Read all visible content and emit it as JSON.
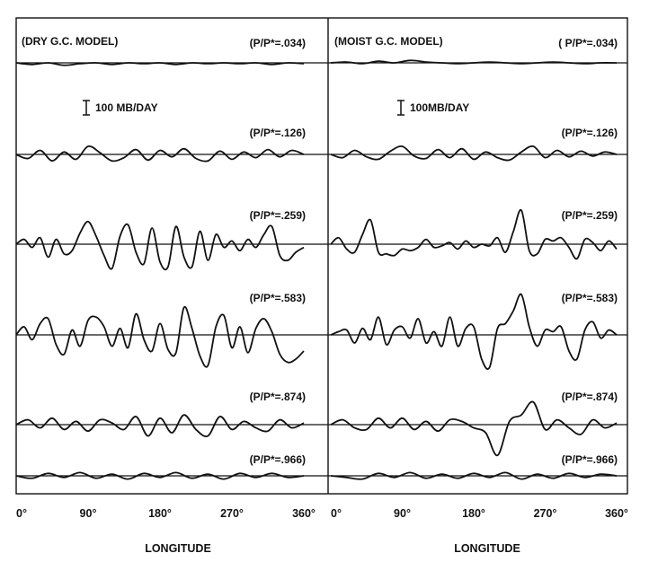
{
  "chart_data": [
    {
      "type": "line",
      "title": "(DRY G.C. MODEL)",
      "scale_label": "100 MB/DAY",
      "xlabel": "LONGITUDE",
      "x_ticks": [
        "0°",
        "90°",
        "180°",
        "270°",
        "360°"
      ],
      "xlim": [
        0,
        360
      ],
      "series": [
        {
          "name": "(P/P*=.034)",
          "x": [
            0,
            20,
            40,
            60,
            80,
            100,
            120,
            140,
            160,
            180,
            200,
            220,
            240,
            260,
            280,
            300,
            320,
            340,
            360
          ],
          "y": [
            0,
            -2,
            0,
            -3,
            -1,
            0,
            -2,
            0,
            -1,
            0,
            -2,
            0,
            -1,
            0,
            -1,
            0,
            -2,
            0,
            -1
          ]
        },
        {
          "name": "(P/P*=.126)",
          "x": [
            0,
            15,
            30,
            45,
            60,
            75,
            90,
            105,
            120,
            135,
            150,
            165,
            180,
            195,
            210,
            225,
            240,
            255,
            270,
            285,
            300,
            315,
            330,
            345,
            360
          ],
          "y": [
            0,
            -5,
            5,
            -8,
            3,
            -6,
            10,
            2,
            -8,
            -4,
            6,
            -7,
            5,
            -3,
            7,
            -5,
            -8,
            4,
            -6,
            3,
            -4,
            6,
            -3,
            5,
            0
          ]
        },
        {
          "name": "(P/P*=.259)",
          "x": [
            0,
            10,
            20,
            30,
            40,
            50,
            60,
            70,
            80,
            90,
            100,
            110,
            120,
            130,
            140,
            150,
            160,
            170,
            180,
            190,
            200,
            210,
            220,
            230,
            240,
            250,
            260,
            270,
            280,
            290,
            300,
            310,
            320,
            330,
            340,
            350,
            360
          ],
          "y": [
            0,
            6,
            -4,
            8,
            -16,
            6,
            -12,
            -8,
            14,
            28,
            10,
            -14,
            -30,
            10,
            24,
            -10,
            -24,
            20,
            -22,
            -28,
            22,
            -16,
            -28,
            16,
            -20,
            12,
            -4,
            4,
            -8,
            6,
            -4,
            12,
            22,
            -14,
            -20,
            -10,
            -4
          ]
        },
        {
          "name": "(P/P*=.583)",
          "x": [
            0,
            10,
            20,
            30,
            40,
            50,
            60,
            70,
            80,
            90,
            100,
            110,
            120,
            130,
            140,
            150,
            160,
            170,
            180,
            190,
            200,
            210,
            220,
            230,
            240,
            250,
            260,
            270,
            280,
            290,
            300,
            310,
            320,
            330,
            340,
            350,
            360
          ],
          "y": [
            0,
            10,
            -6,
            14,
            20,
            -12,
            -24,
            6,
            -14,
            18,
            22,
            10,
            -14,
            8,
            -16,
            26,
            -6,
            -20,
            14,
            -18,
            -22,
            34,
            8,
            -26,
            -38,
            10,
            24,
            -16,
            10,
            -22,
            8,
            20,
            4,
            -24,
            -34,
            -30,
            -20
          ]
        },
        {
          "name": "(P/P*=.874)",
          "x": [
            0,
            15,
            30,
            45,
            60,
            75,
            90,
            105,
            120,
            135,
            150,
            165,
            180,
            195,
            210,
            225,
            240,
            255,
            270,
            285,
            300,
            315,
            330,
            345,
            360
          ],
          "y": [
            0,
            6,
            -4,
            8,
            -6,
            4,
            -8,
            6,
            2,
            -6,
            10,
            -14,
            8,
            -10,
            12,
            -6,
            -14,
            10,
            -6,
            4,
            -4,
            -8,
            6,
            -4,
            2
          ]
        },
        {
          "name": "(P/P*=.966)",
          "x": [
            0,
            20,
            40,
            60,
            80,
            100,
            120,
            140,
            160,
            180,
            200,
            220,
            240,
            260,
            280,
            300,
            320,
            340,
            360
          ],
          "y": [
            0,
            -3,
            3,
            -2,
            4,
            -3,
            2,
            -4,
            3,
            -2,
            4,
            -3,
            2,
            -4,
            3,
            -2,
            3,
            -2,
            0
          ]
        }
      ]
    },
    {
      "type": "line",
      "title": "(MOIST G.C. MODEL)",
      "scale_label": "100MB/DAY",
      "xlabel": "LONGITUDE",
      "x_ticks": [
        "0°",
        "90°",
        "180°",
        "270°",
        "360°"
      ],
      "xlim": [
        0,
        360
      ],
      "series": [
        {
          "name": "( P/P*=.034)",
          "x": [
            0,
            20,
            40,
            60,
            80,
            100,
            120,
            140,
            160,
            180,
            200,
            220,
            240,
            260,
            280,
            300,
            320,
            340,
            360
          ],
          "y": [
            0,
            1,
            -1,
            2,
            0,
            3,
            1,
            0,
            -1,
            0,
            1,
            0,
            -1,
            0,
            1,
            0,
            -1,
            0,
            0
          ]
        },
        {
          "name": "(P/P*=.126)",
          "x": [
            0,
            15,
            30,
            45,
            60,
            75,
            90,
            105,
            120,
            135,
            150,
            165,
            180,
            195,
            210,
            225,
            240,
            255,
            270,
            285,
            300,
            315,
            330,
            345,
            360
          ],
          "y": [
            0,
            -4,
            5,
            -3,
            -6,
            4,
            10,
            -2,
            -5,
            6,
            -4,
            7,
            -6,
            3,
            -4,
            -7,
            3,
            10,
            -4,
            5,
            -3,
            4,
            -2,
            3,
            0
          ]
        },
        {
          "name": "(P/P*=.259)",
          "x": [
            0,
            10,
            20,
            30,
            40,
            50,
            60,
            70,
            80,
            90,
            100,
            110,
            120,
            130,
            140,
            150,
            160,
            170,
            180,
            190,
            200,
            210,
            220,
            230,
            240,
            250,
            260,
            270,
            280,
            290,
            300,
            310,
            320,
            330,
            340,
            350,
            360
          ],
          "y": [
            0,
            8,
            -6,
            -10,
            12,
            30,
            -10,
            -12,
            -14,
            -6,
            -8,
            -4,
            6,
            -4,
            -2,
            2,
            -6,
            4,
            -4,
            0,
            -2,
            8,
            -10,
            16,
            42,
            -8,
            -12,
            6,
            4,
            8,
            -4,
            -18,
            6,
            2,
            -8,
            4,
            -6
          ]
        },
        {
          "name": "(P/P*=.583)",
          "x": [
            0,
            10,
            20,
            30,
            40,
            50,
            60,
            70,
            80,
            90,
            100,
            110,
            120,
            130,
            140,
            150,
            160,
            170,
            180,
            190,
            200,
            210,
            220,
            230,
            240,
            250,
            260,
            270,
            280,
            290,
            300,
            310,
            320,
            330,
            340,
            350,
            360
          ],
          "y": [
            0,
            4,
            6,
            -10,
            8,
            -6,
            22,
            -12,
            6,
            10,
            -4,
            20,
            -10,
            4,
            -14,
            22,
            -14,
            8,
            10,
            -30,
            -40,
            8,
            14,
            30,
            50,
            10,
            -14,
            6,
            4,
            10,
            -20,
            -30,
            6,
            16,
            -4,
            6,
            0
          ]
        },
        {
          "name": "(P/P*=.874)",
          "x": [
            0,
            15,
            30,
            45,
            60,
            75,
            90,
            105,
            120,
            135,
            150,
            165,
            180,
            195,
            210,
            225,
            240,
            255,
            270,
            285,
            300,
            315,
            330,
            345,
            360
          ],
          "y": [
            0,
            6,
            -4,
            -6,
            8,
            -4,
            8,
            -6,
            4,
            -8,
            6,
            4,
            -4,
            -10,
            -38,
            4,
            12,
            28,
            -6,
            6,
            -4,
            -12,
            6,
            -4,
            2
          ]
        },
        {
          "name": "(P/P*=.966)",
          "x": [
            0,
            20,
            40,
            60,
            80,
            100,
            120,
            140,
            160,
            180,
            200,
            220,
            240,
            260,
            280,
            300,
            320,
            340,
            360
          ],
          "y": [
            0,
            -2,
            -4,
            3,
            -2,
            4,
            -3,
            2,
            -3,
            3,
            -2,
            4,
            -4,
            2,
            -3,
            3,
            -2,
            2,
            0
          ]
        }
      ]
    }
  ]
}
